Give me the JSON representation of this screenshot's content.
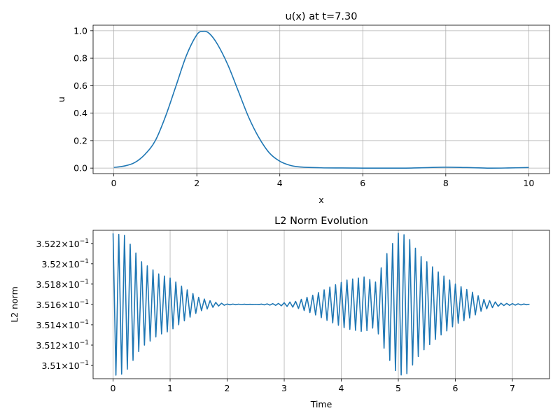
{
  "chart_data": [
    {
      "type": "line",
      "title": "u(x) at t=7.30",
      "xlabel": "x",
      "ylabel": "u",
      "xlim": [
        -0.5,
        10.5
      ],
      "ylim": [
        -0.04,
        1.04
      ],
      "grid": true,
      "xticks": [
        0,
        2,
        4,
        6,
        8,
        10
      ],
      "xtick_labels": [
        "0",
        "2",
        "4",
        "6",
        "8",
        "10"
      ],
      "yticks": [
        0.0,
        0.2,
        0.4,
        0.6,
        0.8,
        1.0
      ],
      "ytick_labels": [
        "0.0",
        "0.2",
        "0.4",
        "0.6",
        "0.8",
        "1.0"
      ],
      "series": [
        {
          "x": [
            0,
            0.25,
            0.5,
            0.75,
            1.0,
            1.25,
            1.5,
            1.75,
            2.0,
            2.15,
            2.3,
            2.5,
            2.75,
            3.0,
            3.25,
            3.5,
            3.75,
            4.0,
            4.25,
            4.5,
            5.0,
            5.5,
            6.0,
            6.5,
            7.0,
            7.5,
            8.0,
            8.5,
            9.0,
            9.5,
            10.0
          ],
          "y": [
            0.005,
            0.015,
            0.04,
            0.1,
            0.2,
            0.38,
            0.6,
            0.82,
            0.97,
            0.995,
            0.98,
            0.9,
            0.75,
            0.56,
            0.37,
            0.22,
            0.11,
            0.05,
            0.02,
            0.008,
            0.002,
            0.001,
            0.0,
            0.0,
            0.0,
            0.003,
            0.007,
            0.004,
            0.0,
            0.001,
            0.004
          ],
          "color": "#1f77b4"
        }
      ]
    },
    {
      "type": "line",
      "title": "L2 Norm Evolution",
      "xlabel": "Time",
      "ylabel": "L2 norm",
      "yscale": "log",
      "xlim": [
        -0.35,
        7.65
      ],
      "ylim": [
        0.35087,
        0.35233
      ],
      "grid": true,
      "xticks": [
        0,
        1,
        2,
        3,
        4,
        5,
        6,
        7
      ],
      "xtick_labels": [
        "0",
        "1",
        "2",
        "3",
        "4",
        "5",
        "6",
        "7"
      ],
      "yticks": [
        0.351,
        0.3512,
        0.3514,
        0.3516,
        0.3518,
        0.352,
        0.3522
      ],
      "ytick_mantissas": [
        "3.51",
        "3.512",
        "3.514",
        "3.516",
        "3.518",
        "3.52",
        "3.522"
      ],
      "ytick_base": "10",
      "ytick_exponent": "−1",
      "series": [
        {
          "envelope": [
            [
              0.0,
              0.0007
            ],
            [
              0.2,
              0.00068
            ],
            [
              0.5,
              0.00042
            ],
            [
              0.8,
              0.0003
            ],
            [
              1.0,
              0.00026
            ],
            [
              1.2,
              0.00018
            ],
            [
              1.5,
              7e-05
            ],
            [
              1.8,
              2e-05
            ],
            [
              2.0,
              4e-06
            ],
            [
              2.5,
              1e-06
            ],
            [
              2.9,
              1e-05
            ],
            [
              3.2,
              3e-05
            ],
            [
              3.5,
              9e-05
            ],
            [
              3.8,
              0.00017
            ],
            [
              4.1,
              0.00024
            ],
            [
              4.4,
              0.00027
            ],
            [
              4.6,
              0.00022
            ],
            [
              4.8,
              0.0005
            ],
            [
              5.0,
              0.0007
            ],
            [
              5.15,
              0.00068
            ],
            [
              5.4,
              0.00047
            ],
            [
              5.7,
              0.00032
            ],
            [
              6.0,
              0.0002
            ],
            [
              6.3,
              0.00012
            ],
            [
              6.5,
              5e-05
            ],
            [
              6.8,
              1.2e-05
            ],
            [
              7.3,
              2e-06
            ]
          ],
          "period": 0.1,
          "baseline": 0.3516,
          "color": "#1f77b4"
        }
      ]
    }
  ]
}
